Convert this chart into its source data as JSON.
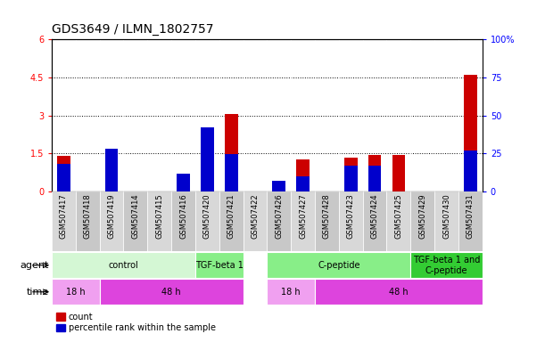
{
  "title": "GDS3649 / ILMN_1802757",
  "samples": [
    "GSM507417",
    "GSM507418",
    "GSM507419",
    "GSM507414",
    "GSM507415",
    "GSM507416",
    "GSM507420",
    "GSM507421",
    "GSM507422",
    "GSM507426",
    "GSM507427",
    "GSM507428",
    "GSM507423",
    "GSM507424",
    "GSM507425",
    "GSM507429",
    "GSM507430",
    "GSM507431"
  ],
  "count_values": [
    1.4,
    0.0,
    1.7,
    0.0,
    0.0,
    0.07,
    0.0,
    3.05,
    0.0,
    0.0,
    1.25,
    0.0,
    1.35,
    1.45,
    1.45,
    0.0,
    0.0,
    4.6
  ],
  "pct_values": [
    18.0,
    0.0,
    28.0,
    0.0,
    0.0,
    12.0,
    42.0,
    24.5,
    0.0,
    7.0,
    10.0,
    0.0,
    17.0,
    17.0,
    0.0,
    0.0,
    0.0,
    27.0
  ],
  "ylim_left": [
    0,
    6
  ],
  "ylim_right": [
    0,
    100
  ],
  "yticks_left": [
    0,
    1.5,
    3,
    4.5,
    6
  ],
  "yticks_right": [
    0,
    25,
    50,
    75,
    100
  ],
  "agent_groups": [
    {
      "label": "control",
      "start": 0,
      "end": 6,
      "color": "#d4f7d4"
    },
    {
      "label": "TGF-beta 1",
      "start": 6,
      "end": 8,
      "color": "#88ee88"
    },
    {
      "label": "C-peptide",
      "start": 9,
      "end": 15,
      "color": "#88ee88"
    },
    {
      "label": "TGF-beta 1 and\nC-peptide",
      "start": 15,
      "end": 18,
      "color": "#33cc33"
    }
  ],
  "time_groups": [
    {
      "label": "18 h",
      "start": 0,
      "end": 2,
      "color": "#f0a0f0"
    },
    {
      "label": "48 h",
      "start": 2,
      "end": 8,
      "color": "#dd44dd"
    },
    {
      "label": "18 h",
      "start": 9,
      "end": 11,
      "color": "#f0a0f0"
    },
    {
      "label": "48 h",
      "start": 11,
      "end": 18,
      "color": "#dd44dd"
    }
  ],
  "bar_color_red": "#cc0000",
  "bar_color_blue": "#0000cc",
  "bar_width": 0.55,
  "title_fontsize": 10,
  "tick_fontsize": 7,
  "label_fontsize": 7,
  "row_label_fontsize": 8,
  "legend_fontsize": 7
}
